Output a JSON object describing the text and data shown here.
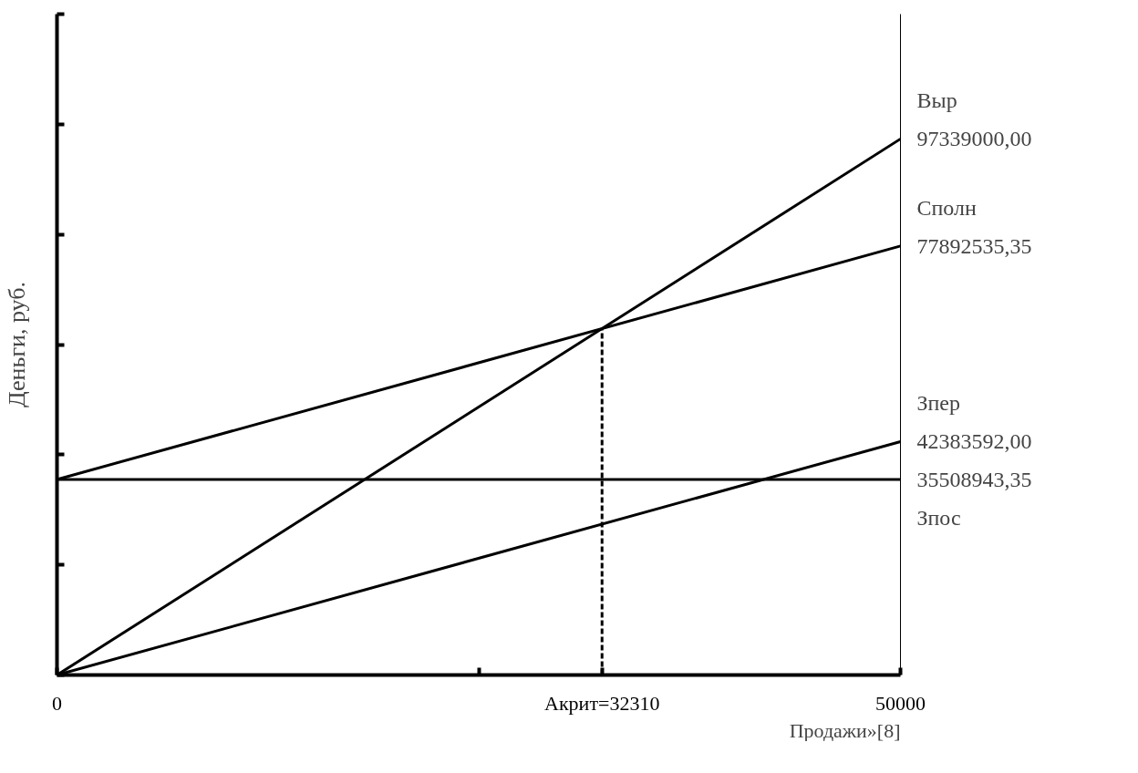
{
  "chart_data": {
    "type": "line",
    "ylabel": "Деньги, руб.",
    "xlabel": "Продажи»[8]",
    "xlim": [
      0,
      50000
    ],
    "ylim": [
      0,
      120000000
    ],
    "xticks": [
      0,
      {
        "value": 25000,
        "label": null
      },
      {
        "value": 32310,
        "label": "Акрит=32310"
      },
      50000
    ],
    "yticks": [
      {
        "value": 0,
        "label": null
      },
      {
        "value": 20000000,
        "label": null
      },
      {
        "value": 40000000,
        "label": null
      },
      {
        "value": 60000000,
        "label": null
      },
      {
        "value": 80000000,
        "label": null
      },
      {
        "value": 100000000,
        "label": null
      },
      {
        "value": 120000000,
        "label": null
      }
    ],
    "grid": false,
    "marker": "none",
    "line_style": "solid",
    "series": [
      {
        "name": "Выр",
        "color": "#000000",
        "x": [
          0,
          50000
        ],
        "values": [
          0,
          97339000
        ],
        "value_labels": [
          null,
          "97339000,00"
        ]
      },
      {
        "name": "Сполн",
        "color": "#000000",
        "x": [
          0,
          50000
        ],
        "values": [
          35508943.35,
          77892535.35
        ],
        "value_labels": [
          null,
          "77892535,35"
        ]
      },
      {
        "name": "Зпер",
        "color": "#000000",
        "x": [
          0,
          50000
        ],
        "values": [
          0,
          42383592
        ],
        "value_labels": [
          null,
          "42383592,00"
        ]
      },
      {
        "name": "Зпос",
        "color": "#000000",
        "x": [
          0,
          50000
        ],
        "values": [
          35508943.35,
          35508943.35
        ],
        "value_labels": [
          null,
          "35508943,35"
        ]
      },
      {
        "color": "#000000",
        "x": [
          32310,
          32310
        ],
        "values": [
          0,
          62900462
        ],
        "line_style": "dashed"
      }
    ]
  }
}
